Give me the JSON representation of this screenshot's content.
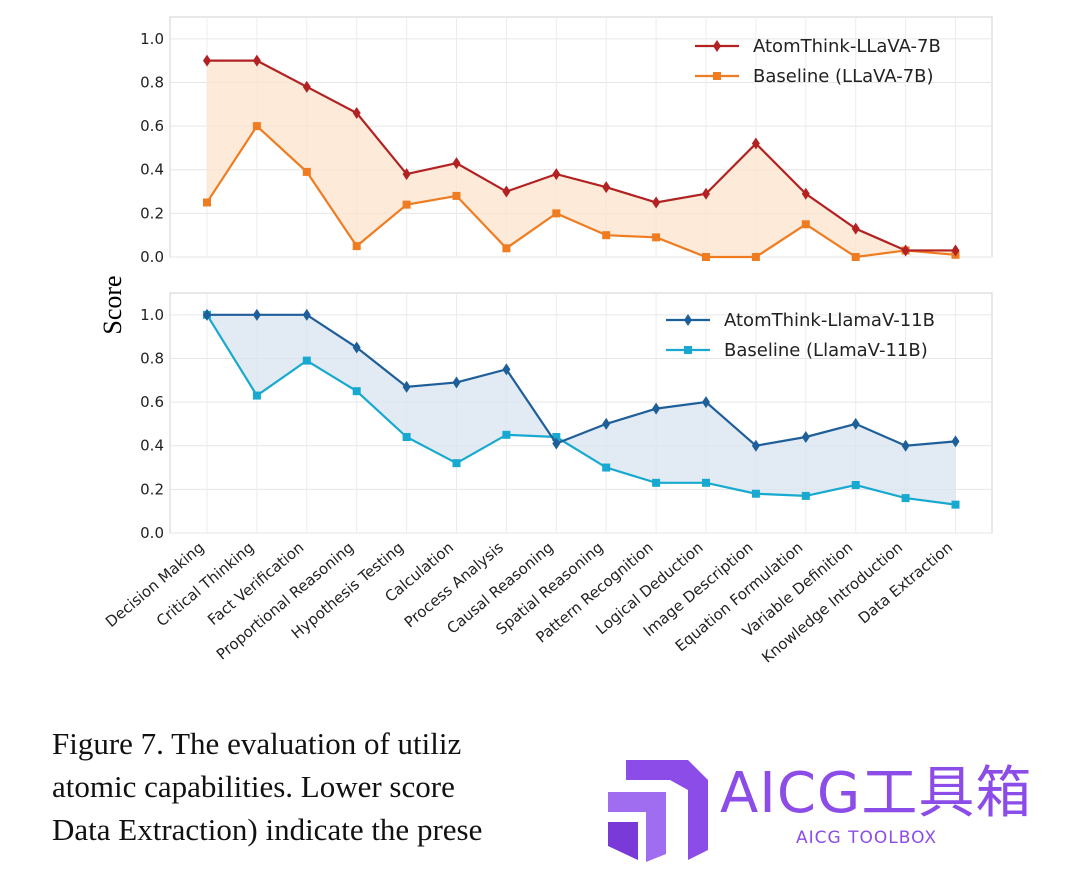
{
  "chart_data": [
    {
      "type": "line",
      "ylabel": "Score",
      "ylim": [
        0,
        1.1
      ],
      "yticks": [
        "0.0",
        "0.2",
        "0.4",
        "0.6",
        "0.8",
        "1.0"
      ],
      "grid": true,
      "legend_position": "top-right",
      "categories": [
        "Decision Making",
        "Critical Thinking",
        "Fact Verification",
        "Proportional Reasoning",
        "Hypothesis Testing",
        "Calculation",
        "Process Analysis",
        "Causal Reasoning",
        "Spatial Reasoning",
        "Pattern Recognition",
        "Logical Deduction",
        "Image Description",
        "Equation Formulation",
        "Variable Definition",
        "Knowledge Introduction",
        "Data Extraction"
      ],
      "fill_between": "#fde3cc",
      "series": [
        {
          "name": "AtomThink-LLaVA-7B",
          "color": "#b22222",
          "marker": "diamond",
          "values": [
            0.9,
            0.9,
            0.78,
            0.66,
            0.38,
            0.43,
            0.3,
            0.38,
            0.32,
            0.25,
            0.29,
            0.52,
            0.29,
            0.13,
            0.03,
            0.03
          ]
        },
        {
          "name": "Baseline (LLaVA-7B)",
          "color": "#f07c22",
          "marker": "square",
          "values": [
            0.25,
            0.6,
            0.39,
            0.05,
            0.24,
            0.28,
            0.04,
            0.2,
            0.1,
            0.09,
            0.0,
            0.0,
            0.15,
            0.0,
            0.03,
            0.01
          ]
        }
      ]
    },
    {
      "type": "line",
      "ylabel": "Score",
      "ylim": [
        0,
        1.1
      ],
      "yticks": [
        "0.0",
        "0.2",
        "0.4",
        "0.6",
        "0.8",
        "1.0"
      ],
      "grid": true,
      "legend_position": "top-right",
      "categories": [
        "Decision Making",
        "Critical Thinking",
        "Fact Verification",
        "Proportional Reasoning",
        "Hypothesis Testing",
        "Calculation",
        "Process Analysis",
        "Causal Reasoning",
        "Spatial Reasoning",
        "Pattern Recognition",
        "Logical Deduction",
        "Image Description",
        "Equation Formulation",
        "Variable Definition",
        "Knowledge Introduction",
        "Data Extraction"
      ],
      "fill_between": "#d8e4f0",
      "series": [
        {
          "name": "AtomThink-LlamaV-11B",
          "color": "#1f5f99",
          "marker": "diamond",
          "values": [
            1.0,
            1.0,
            1.0,
            0.85,
            0.67,
            0.69,
            0.75,
            0.41,
            0.5,
            0.57,
            0.6,
            0.4,
            0.44,
            0.5,
            0.4,
            0.42
          ]
        },
        {
          "name": "Baseline (LlamaV-11B)",
          "color": "#17a9cf",
          "marker": "square",
          "values": [
            1.0,
            0.63,
            0.79,
            0.65,
            0.44,
            0.32,
            0.45,
            0.44,
            0.3,
            0.23,
            0.23,
            0.18,
            0.17,
            0.22,
            0.16,
            0.13
          ]
        }
      ]
    }
  ],
  "caption": {
    "line1": "Figure 7.  The evaluation of utiliz",
    "line2": "atomic capabilities.  Lower score",
    "line3": "Data Extraction) indicate the prese"
  },
  "watermark": {
    "title": "AICG工具箱",
    "subtitle": "AICG TOOLBOX",
    "color": "#8b4ce8"
  }
}
